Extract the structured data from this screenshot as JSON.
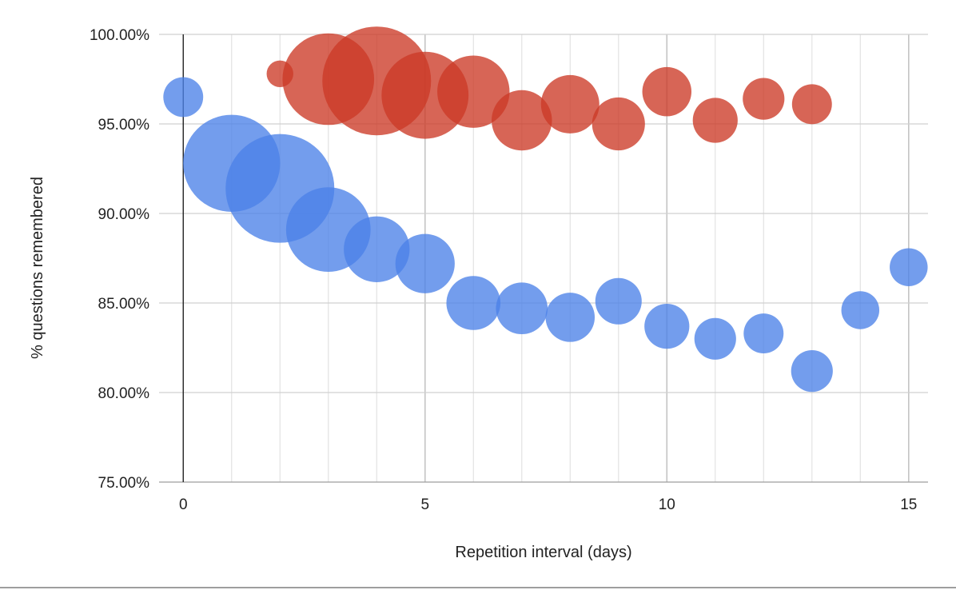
{
  "chart_data": {
    "type": "bubble",
    "xlabel": "Repetition interval (days)",
    "ylabel": "% questions remembered",
    "xlim": [
      -0.5,
      15.4
    ],
    "ylim": [
      75,
      100
    ],
    "x_ticks": [
      {
        "value": 0,
        "label": "0"
      },
      {
        "value": 5,
        "label": "5"
      },
      {
        "value": 10,
        "label": "10"
      },
      {
        "value": 15,
        "label": "15"
      }
    ],
    "y_ticks": [
      {
        "value": 75,
        "label": "75.00%"
      },
      {
        "value": 80,
        "label": "80.00%"
      },
      {
        "value": 85,
        "label": "85.00%"
      },
      {
        "value": 90,
        "label": "90.00%"
      },
      {
        "value": 95,
        "label": "95.00%"
      },
      {
        "value": 100,
        "label": "100.00%"
      }
    ],
    "grid": true,
    "legend": "none",
    "series": [
      {
        "color": "#cc3a27",
        "points": [
          {
            "x": 2,
            "y": 97.8,
            "size": 1
          },
          {
            "x": 3,
            "y": 97.5,
            "size": 66
          },
          {
            "x": 4,
            "y": 97.4,
            "size": 100
          },
          {
            "x": 5,
            "y": 96.6,
            "size": 58
          },
          {
            "x": 6,
            "y": 96.8,
            "size": 36
          },
          {
            "x": 7,
            "y": 95.2,
            "size": 22
          },
          {
            "x": 8,
            "y": 96.1,
            "size": 20
          },
          {
            "x": 9,
            "y": 95.0,
            "size": 15
          },
          {
            "x": 10,
            "y": 96.8,
            "size": 12
          },
          {
            "x": 11,
            "y": 95.2,
            "size": 9
          },
          {
            "x": 12,
            "y": 96.4,
            "size": 7
          },
          {
            "x": 13,
            "y": 96.1,
            "size": 6
          }
        ]
      },
      {
        "color": "#4c82e8",
        "points": [
          {
            "x": 0,
            "y": 96.5,
            "size": 6
          },
          {
            "x": 1,
            "y": 92.8,
            "size": 76
          },
          {
            "x": 2,
            "y": 91.4,
            "size": 100
          },
          {
            "x": 3,
            "y": 89.1,
            "size": 54
          },
          {
            "x": 4,
            "y": 88.0,
            "size": 28
          },
          {
            "x": 5,
            "y": 87.2,
            "size": 21
          },
          {
            "x": 6,
            "y": 85.0,
            "size": 16
          },
          {
            "x": 7,
            "y": 84.7,
            "size": 14
          },
          {
            "x": 8,
            "y": 84.2,
            "size": 12
          },
          {
            "x": 9,
            "y": 85.1,
            "size": 10
          },
          {
            "x": 10,
            "y": 83.7,
            "size": 9
          },
          {
            "x": 11,
            "y": 83.0,
            "size": 7
          },
          {
            "x": 12,
            "y": 83.3,
            "size": 6
          },
          {
            "x": 13,
            "y": 81.2,
            "size": 7
          },
          {
            "x": 14,
            "y": 84.6,
            "size": 5
          },
          {
            "x": 15,
            "y": 87.0,
            "size": 5
          }
        ]
      }
    ]
  }
}
